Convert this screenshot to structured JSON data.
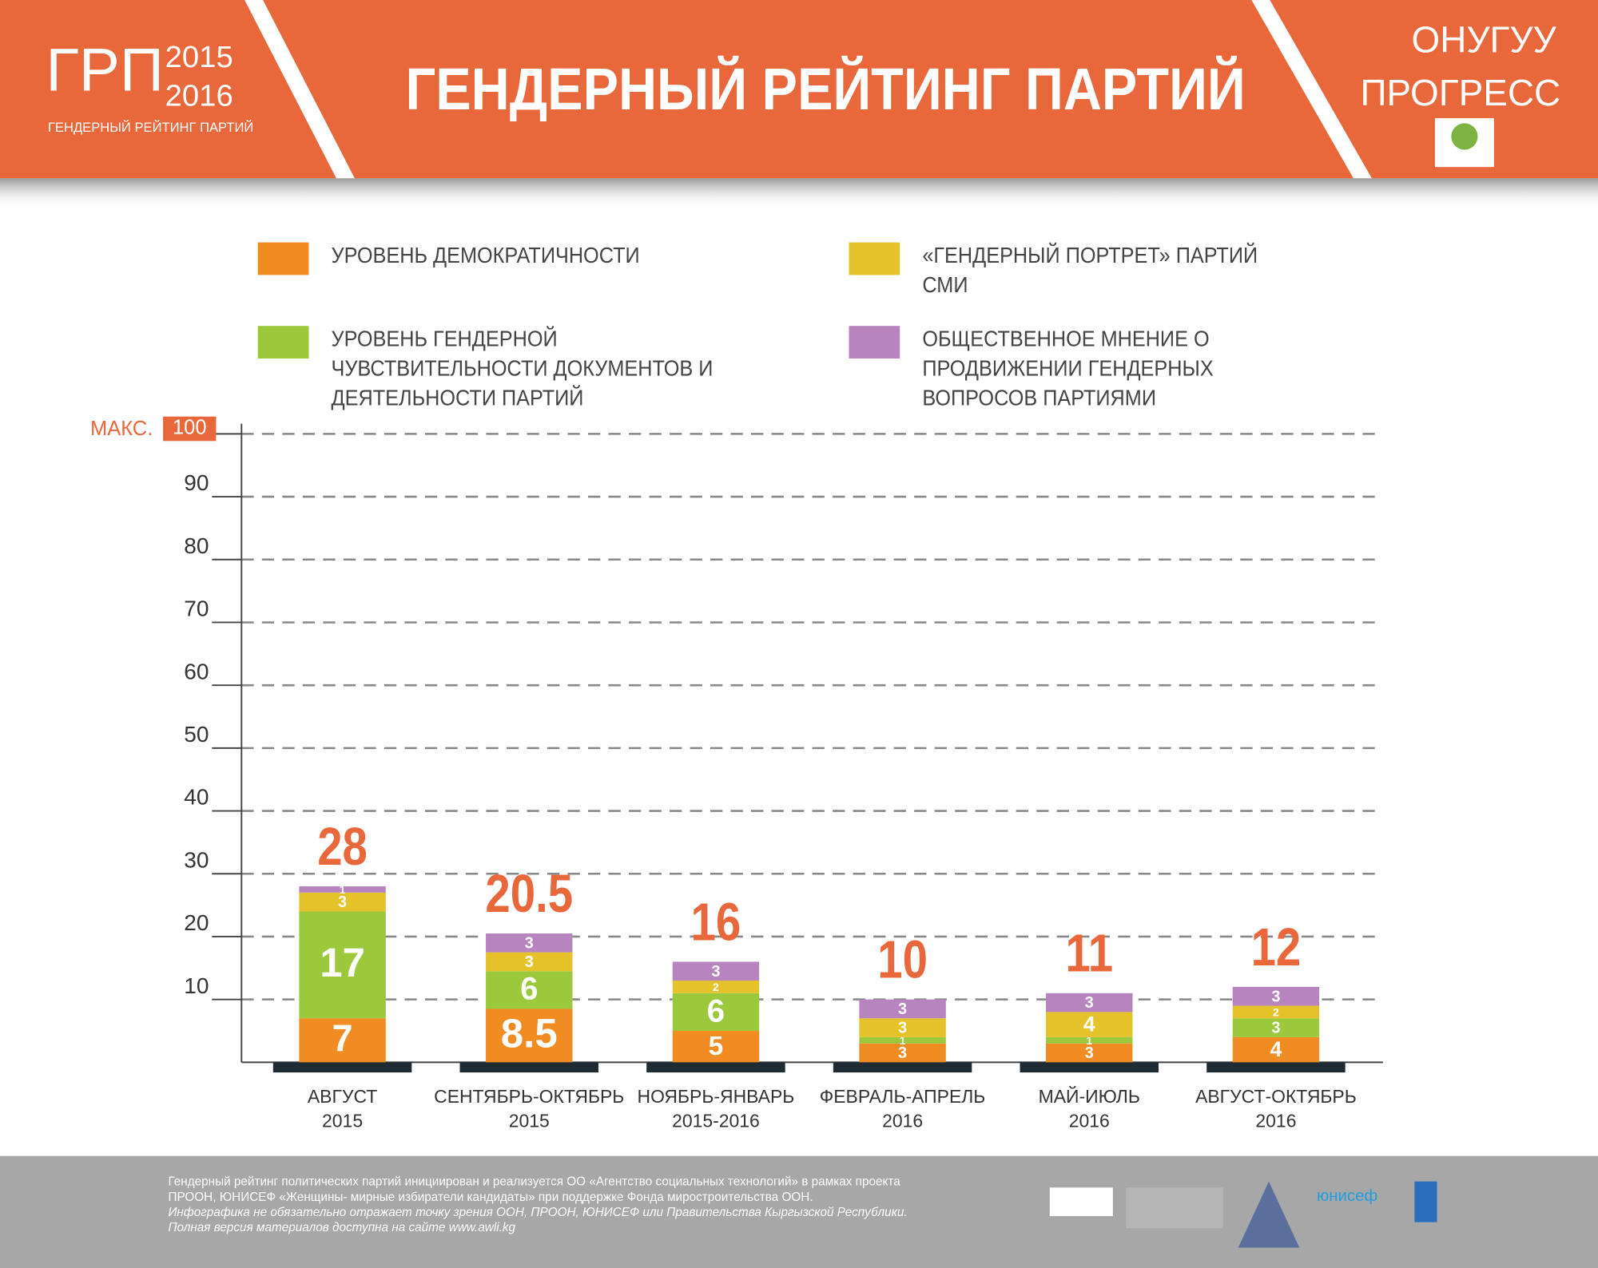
{
  "header": {
    "logo": "ГРП",
    "years": [
      "2015",
      "2016"
    ],
    "logo_subtitle": "ГЕНДЕРНЫЙ РЕЙТИНГ ПАРТИЙ",
    "title": "ГЕНДЕРНЫЙ РЕЙТИНГ ПАРТИЙ",
    "org": [
      "ОНУГУУ",
      "ПРОГРЕСС"
    ]
  },
  "chart_data": {
    "type": "stacked_bar",
    "categories": [
      [
        "АВГУСТ",
        "2015"
      ],
      [
        "СЕНТЯБРЬ-ОКТЯБРЬ",
        "2015"
      ],
      [
        "НОЯБРЬ-ЯНВАРЬ",
        "2015-2016"
      ],
      [
        "ФЕВРАЛЬ-АПРЕЛЬ",
        "2016"
      ],
      [
        "МАЙ-ИЮЛЬ",
        "2016"
      ],
      [
        "АВГУСТ-ОКТЯБРЬ",
        "2016"
      ]
    ],
    "series": [
      {
        "name": "УРОВЕНЬ ДЕМОКРАТИЧНОСТИ",
        "color": "#f08c22",
        "values": [
          7,
          8.5,
          5,
          3,
          3,
          4
        ]
      },
      {
        "name": "УРОВЕНЬ ГЕНДЕРНОЙ ЧУВСТВИТЕЛЬНОСТИ ДОКУМЕНТОВ И ДЕЯТЕЛЬНОСТИ ПАРТИЙ",
        "color": "#9cc93c",
        "values": [
          17,
          6,
          6,
          1,
          1,
          3
        ]
      },
      {
        "name": "«ГЕНДЕРНЫЙ ПОРТРЕТ» ПАРТИЙ СМИ",
        "color": "#e6c22a",
        "values": [
          3,
          3,
          2,
          3,
          4,
          2
        ]
      },
      {
        "name": "ОБЩЕСТВЕННОЕ МНЕНИЕ О ПРОДВИЖЕНИИ ГЕНДЕРНЫХ ВОПРОСОВ ПАРТИЯМИ",
        "color": "#b784c0",
        "values": [
          1,
          3,
          3,
          3,
          3,
          3
        ]
      }
    ],
    "totals": [
      28,
      20.5,
      16,
      10,
      11,
      12
    ],
    "ylim": [
      0,
      100
    ],
    "yticks": [
      10,
      20,
      30,
      40,
      50,
      60,
      70,
      80,
      90,
      100
    ],
    "max_label": "МАКС.",
    "grid": true
  },
  "footer": {
    "lines": [
      "Гендерный рейтинг политических партий инициирован и реализуется ОО «Агентство социальных технологий» в рамках проекта",
      "ПРООН, ЮНИСЕФ «Женщины- мирные избиратели кандидаты» при поддержке Фонда миростроительства ООН.",
      "Инфографика не обязательно отражает точку зрения ООН, ПРООН, ЮНИСЕФ или Правительства Кыргызской Республики.",
      "Полная версия материалов доступна на сайте www.awli.kg"
    ],
    "logos": [
      "юнисеф"
    ]
  }
}
